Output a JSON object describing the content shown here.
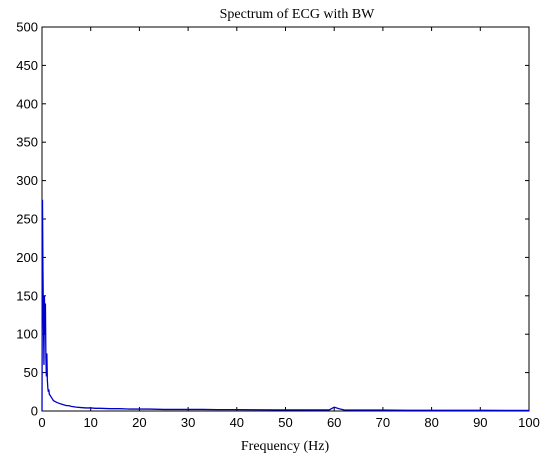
{
  "chart_data": {
    "type": "line",
    "title": "Spectrum of ECG with BW",
    "xlabel": "Frequency (Hz)",
    "ylabel": "",
    "xlim": [
      0,
      100
    ],
    "ylim": [
      0,
      500
    ],
    "xticks": [
      "0",
      "10",
      "20",
      "30",
      "40",
      "50",
      "60",
      "70",
      "80",
      "90",
      "100"
    ],
    "yticks": [
      "0",
      "50",
      "100",
      "150",
      "200",
      "250",
      "300",
      "350",
      "400",
      "450",
      "500"
    ],
    "grid": false,
    "legend": "none",
    "series": [
      {
        "color": "#0000cc",
        "x": [
          0,
          0.1,
          0.2,
          0.3,
          0.4,
          0.5,
          0.6,
          0.7,
          0.8,
          0.9,
          1.0,
          1.1,
          1.2,
          1.3,
          1.4,
          1.5,
          1.7,
          1.9,
          2.1,
          2.3,
          2.5,
          2.8,
          3.1,
          3.5,
          4.0,
          4.5,
          5.0,
          5.5,
          6.0,
          7.0,
          8.0,
          9.0,
          10.0,
          11.0,
          12.0,
          14.0,
          16.0,
          18.0,
          20.0,
          22.0,
          25.0,
          28.0,
          30.0,
          33.0,
          36.0,
          40.0,
          44.0,
          48.0,
          52.0,
          56.0,
          59.0,
          60.0,
          61.0,
          62.0,
          65.0,
          70.0,
          75.0,
          80.0,
          85.0,
          90.0,
          95.0,
          100.0
        ],
        "y": [
          0,
          275,
          180,
          120,
          60,
          150,
          100,
          140,
          70,
          45,
          75,
          40,
          30,
          25,
          28,
          22,
          20,
          18,
          16,
          14,
          13,
          12,
          11,
          10,
          9,
          8,
          7,
          7,
          6,
          5,
          4.5,
          4,
          4,
          3.5,
          3.5,
          3,
          3,
          2.5,
          2.5,
          2.5,
          2,
          2,
          2,
          2,
          1.8,
          1.8,
          1.6,
          1.5,
          1.5,
          1.4,
          1.5,
          5,
          3,
          1.5,
          1.2,
          1.2,
          1.0,
          1.0,
          0.9,
          0.9,
          0.8,
          0.8
        ]
      }
    ]
  }
}
